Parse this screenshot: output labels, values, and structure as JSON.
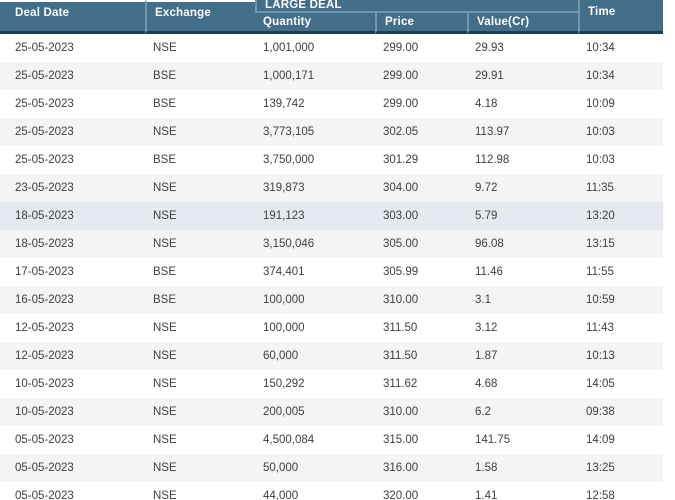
{
  "header": {
    "deal_date": "Deal Date",
    "exchange": "Exchange",
    "large_deal": "LARGE DEAL",
    "quantity": "Quantity",
    "price": "Price",
    "value_cr": "Value(Cr)",
    "time": "Time"
  },
  "highlighted_row_index": 6,
  "rows": [
    {
      "deal_date": "25-05-2023",
      "exchange": "NSE",
      "quantity": "1,001,000",
      "price": "299.00",
      "value_cr": "29.93",
      "time": "10:34"
    },
    {
      "deal_date": "25-05-2023",
      "exchange": "BSE",
      "quantity": "1,000,171",
      "price": "299.00",
      "value_cr": "29.91",
      "time": "10:34"
    },
    {
      "deal_date": "25-05-2023",
      "exchange": "BSE",
      "quantity": "139,742",
      "price": "299.00",
      "value_cr": "4.18",
      "time": "10:09"
    },
    {
      "deal_date": "25-05-2023",
      "exchange": "NSE",
      "quantity": "3,773,105",
      "price": "302.05",
      "value_cr": "113.97",
      "time": "10:03"
    },
    {
      "deal_date": "25-05-2023",
      "exchange": "BSE",
      "quantity": "3,750,000",
      "price": "301.29",
      "value_cr": "112.98",
      "time": "10:03"
    },
    {
      "deal_date": "23-05-2023",
      "exchange": "NSE",
      "quantity": "319,873",
      "price": "304.00",
      "value_cr": "9.72",
      "time": "11:35"
    },
    {
      "deal_date": "18-05-2023",
      "exchange": "NSE",
      "quantity": "191,123",
      "price": "303.00",
      "value_cr": "5.79",
      "time": "13:20"
    },
    {
      "deal_date": "18-05-2023",
      "exchange": "NSE",
      "quantity": "3,150,046",
      "price": "305.00",
      "value_cr": "96.08",
      "time": "13:15"
    },
    {
      "deal_date": "17-05-2023",
      "exchange": "BSE",
      "quantity": "374,401",
      "price": "305.99",
      "value_cr": "11.46",
      "time": "11:55"
    },
    {
      "deal_date": "16-05-2023",
      "exchange": "BSE",
      "quantity": "100,000",
      "price": "310.00",
      "value_cr": "3.1",
      "time": "10:59"
    },
    {
      "deal_date": "12-05-2023",
      "exchange": "NSE",
      "quantity": "100,000",
      "price": "311.50",
      "value_cr": "3.12",
      "time": "11:43"
    },
    {
      "deal_date": "12-05-2023",
      "exchange": "NSE",
      "quantity": "60,000",
      "price": "311.50",
      "value_cr": "1.87",
      "time": "10:13"
    },
    {
      "deal_date": "10-05-2023",
      "exchange": "NSE",
      "quantity": "150,292",
      "price": "311.62",
      "value_cr": "4.68",
      "time": "14:05"
    },
    {
      "deal_date": "10-05-2023",
      "exchange": "NSE",
      "quantity": "200,005",
      "price": "310.00",
      "value_cr": "6.2",
      "time": "09:38"
    },
    {
      "deal_date": "05-05-2023",
      "exchange": "NSE",
      "quantity": "4,500,084",
      "price": "315.00",
      "value_cr": "141.75",
      "time": "14:09"
    },
    {
      "deal_date": "05-05-2023",
      "exchange": "NSE",
      "quantity": "50,000",
      "price": "316.00",
      "value_cr": "1.58",
      "time": "13:25"
    },
    {
      "deal_date": "05-05-2023",
      "exchange": "NSE",
      "quantity": "44,000",
      "price": "320.00",
      "value_cr": "1.41",
      "time": "12:58"
    }
  ],
  "colors": {
    "header_bg": "#426e8a",
    "header_divider": "#7197ac",
    "header_bottom_border": "#1e3e52",
    "row_alt_bg": "#f5f4f4",
    "row_highlight_bg": "#e4eaef",
    "row_text": "#3f3f3f"
  }
}
